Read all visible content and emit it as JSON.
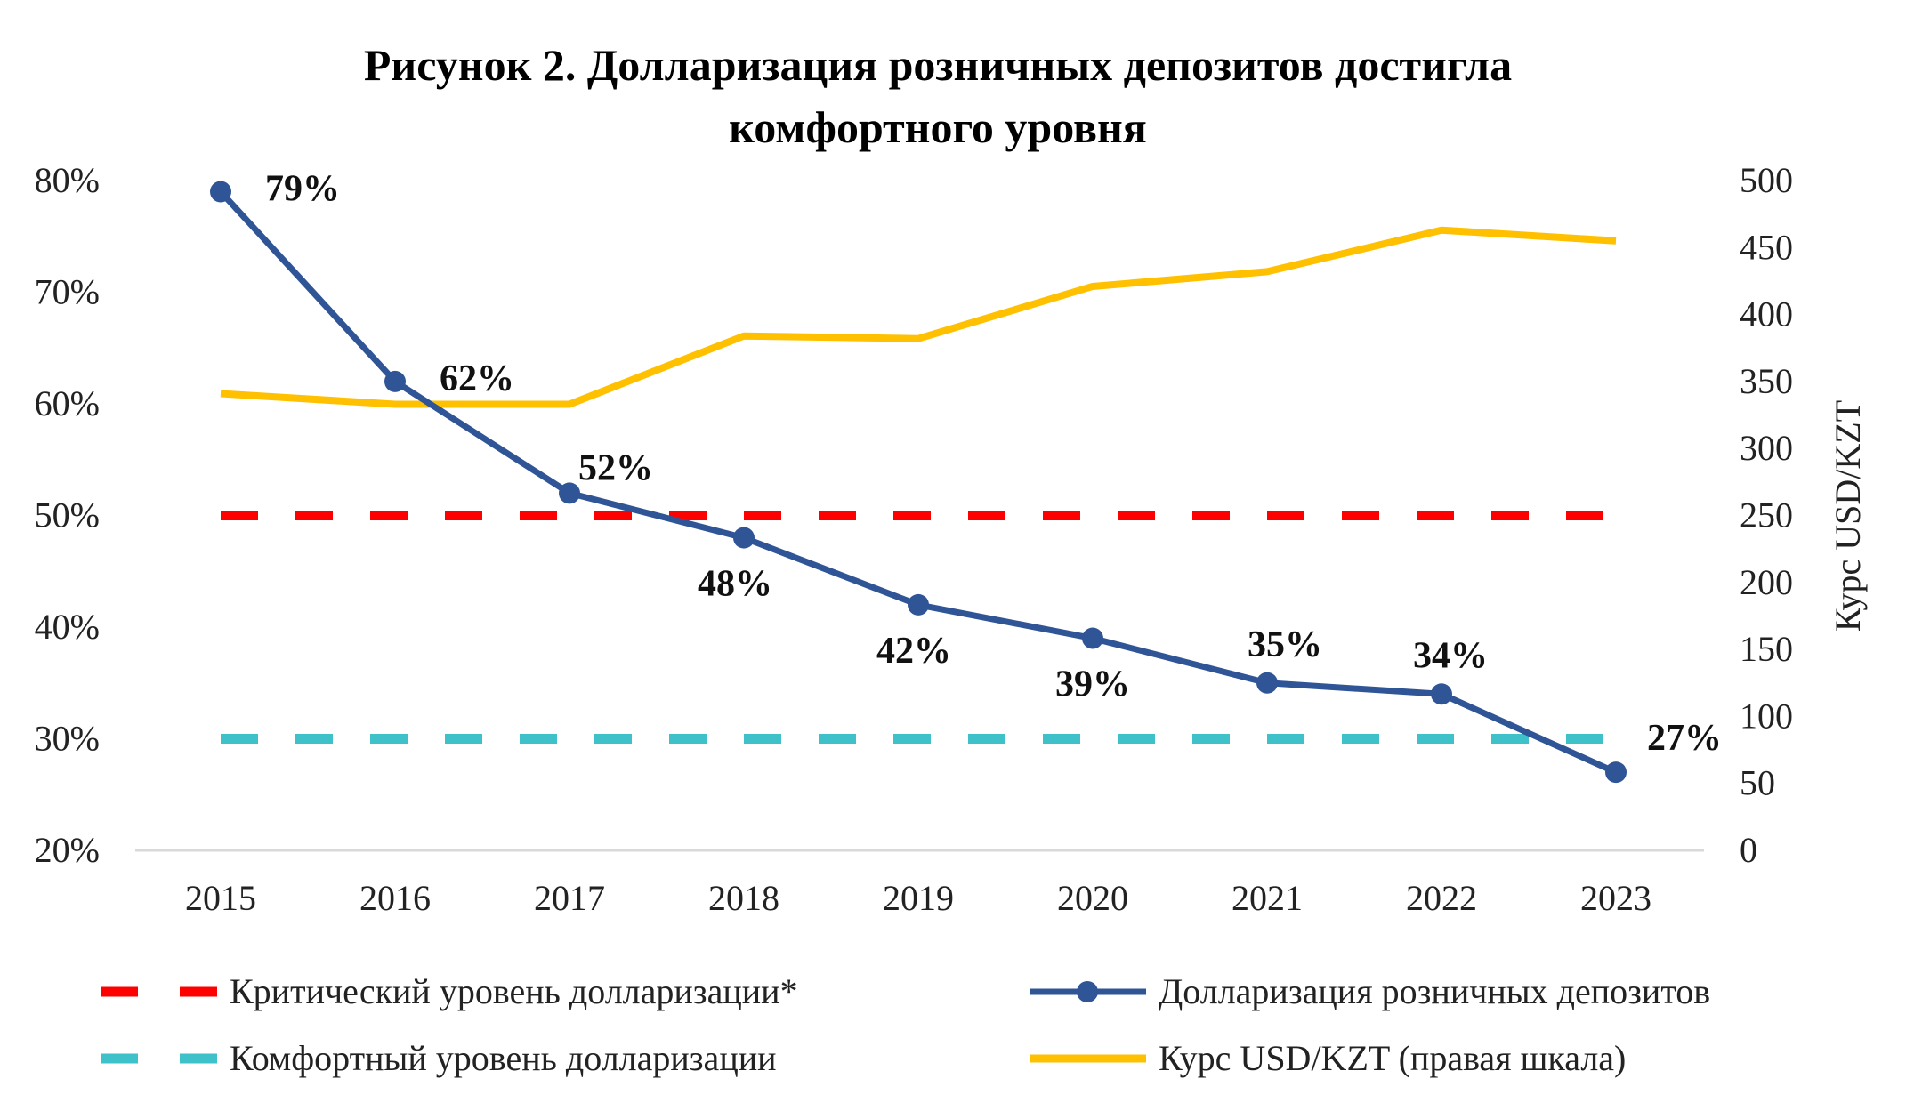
{
  "chart_data": {
    "type": "line",
    "title_lines": [
      "Рисунок 2. Долларизация розничных депозитов достигла",
      "комфортного уровня"
    ],
    "categories": [
      "2015",
      "2016",
      "2017",
      "2018",
      "2019",
      "2020",
      "2021",
      "2022",
      "2023"
    ],
    "y_left": {
      "ylim": [
        20,
        80
      ],
      "ticks": [
        "20%",
        "30%",
        "40%",
        "50%",
        "60%",
        "70%",
        "80%"
      ]
    },
    "y_right": {
      "label": "Курс USD/KZT",
      "ylim": [
        0,
        500
      ],
      "ticks": [
        "0",
        "50",
        "100",
        "150",
        "200",
        "250",
        "300",
        "350",
        "400",
        "450",
        "500"
      ]
    },
    "grid": false,
    "legend_position": "bottom",
    "series": [
      {
        "name": "Критический уровень долларизации*",
        "axis": "left",
        "style": "dashed",
        "color": "#ff0000",
        "values": [
          50,
          50,
          50,
          50,
          50,
          50,
          50,
          50,
          50
        ]
      },
      {
        "name": "Долларизация розничных депозитов",
        "axis": "left",
        "style": "line-marker",
        "color": "#2f5597",
        "values": [
          79,
          62,
          52,
          48,
          42,
          39,
          35,
          34,
          27
        ],
        "data_labels": [
          "79%",
          "62%",
          "52%",
          "48%",
          "42%",
          "39%",
          "35%",
          "34%",
          "27%"
        ]
      },
      {
        "name": "Комфортный уровень долларизации",
        "axis": "left",
        "style": "dashed",
        "color": "#3fc1c9",
        "values": [
          30,
          30,
          30,
          30,
          30,
          30,
          30,
          30,
          30
        ]
      },
      {
        "name": "Курс USD/KZT  (правая шкала)",
        "axis": "right",
        "style": "line",
        "color": "#ffc000",
        "values": [
          341,
          333,
          333,
          384,
          382,
          421,
          432,
          463,
          455
        ]
      }
    ]
  }
}
